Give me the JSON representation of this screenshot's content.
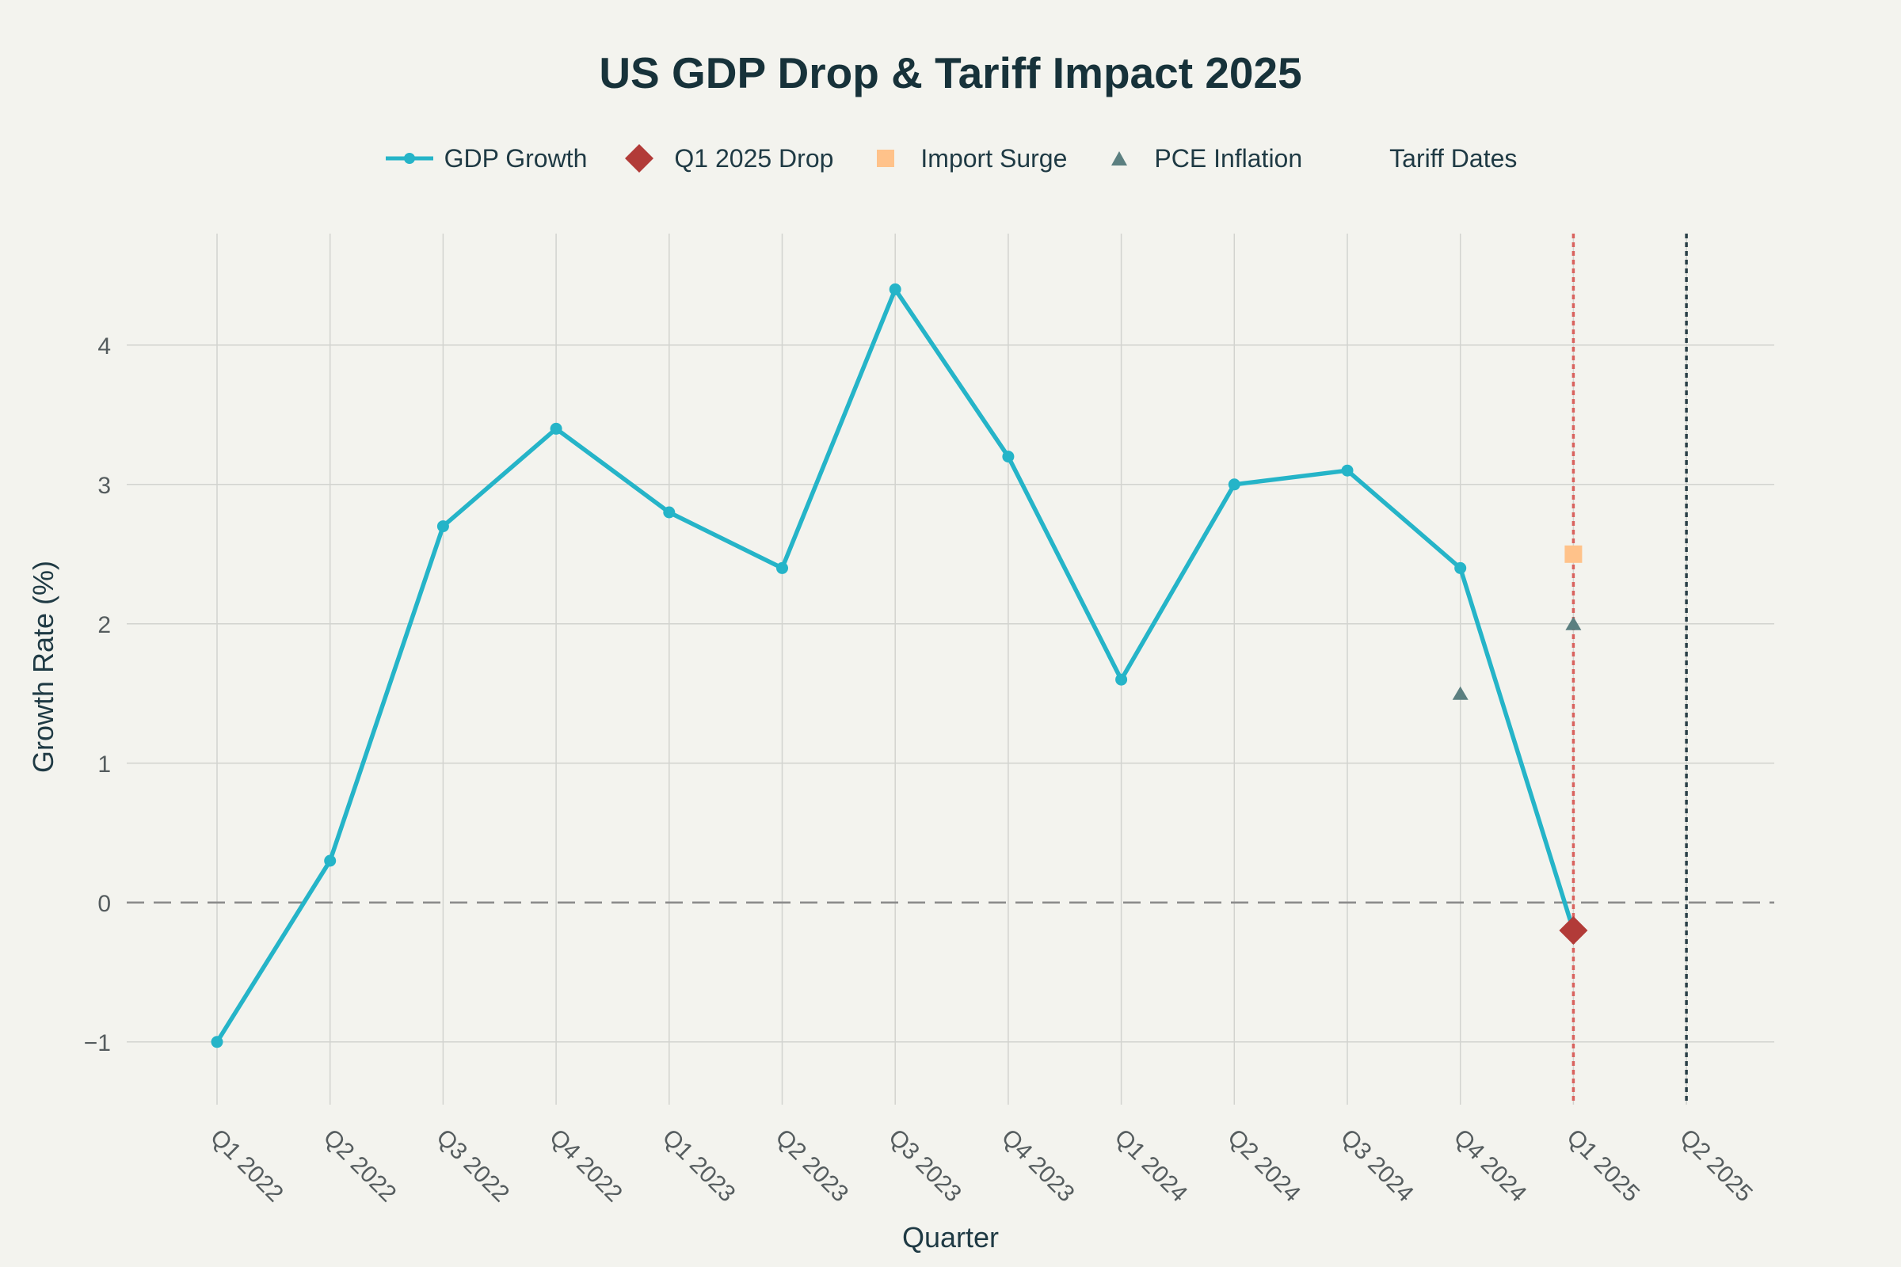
{
  "chart_data": {
    "type": "line",
    "title": "US GDP Drop & Tariff Impact 2025",
    "xlabel": "Quarter",
    "ylabel": "Growth Rate (%)",
    "categories": [
      "Q1 2022",
      "Q2 2022",
      "Q3 2022",
      "Q4 2022",
      "Q1 2023",
      "Q2 2023",
      "Q3 2023",
      "Q4 2023",
      "Q1 2024",
      "Q2 2024",
      "Q3 2024",
      "Q4 2024",
      "Q1 2025",
      "Q2 2025"
    ],
    "ylim": [
      -1.45,
      4.8
    ],
    "yticks": [
      -1,
      0,
      1,
      2,
      3,
      4
    ],
    "ytick_labels": [
      "−1",
      "0",
      "1",
      "2",
      "3",
      "4"
    ],
    "grid": true,
    "legend_position": "top-center",
    "series": [
      {
        "name": "GDP Growth",
        "kind": "line+markers",
        "color": "#25b4c8",
        "x": [
          "Q1 2022",
          "Q2 2022",
          "Q3 2022",
          "Q4 2022",
          "Q1 2023",
          "Q2 2023",
          "Q3 2023",
          "Q4 2023",
          "Q1 2024",
          "Q2 2024",
          "Q3 2024",
          "Q4 2024",
          "Q1 2025"
        ],
        "values": [
          -1.0,
          0.3,
          2.7,
          3.4,
          2.8,
          2.4,
          4.4,
          3.2,
          1.6,
          3.0,
          3.1,
          2.4,
          -0.2
        ]
      },
      {
        "name": "Q1 2025 Drop",
        "kind": "marker",
        "marker": "diamond",
        "color": "#b23b38",
        "x": [
          "Q1 2025"
        ],
        "values": [
          -0.2
        ]
      },
      {
        "name": "Import Surge",
        "kind": "marker",
        "marker": "square",
        "color": "#ffc28a",
        "x": [
          "Q1 2025"
        ],
        "values": [
          2.5
        ]
      },
      {
        "name": "PCE Inflation",
        "kind": "marker",
        "marker": "triangle",
        "color": "#5b7f80",
        "x": [
          "Q4 2024",
          "Q1 2025"
        ],
        "values": [
          1.5,
          2.0
        ]
      },
      {
        "name": "Tariff Dates",
        "kind": "vlines",
        "lines": [
          {
            "x": "Q1 2025",
            "color": "#d9625e"
          },
          {
            "x": "Q2 2025",
            "color": "#2a4048"
          }
        ]
      }
    ],
    "reference_line": {
      "y": 0,
      "style": "dashed",
      "color": "#8a8a8a"
    }
  }
}
